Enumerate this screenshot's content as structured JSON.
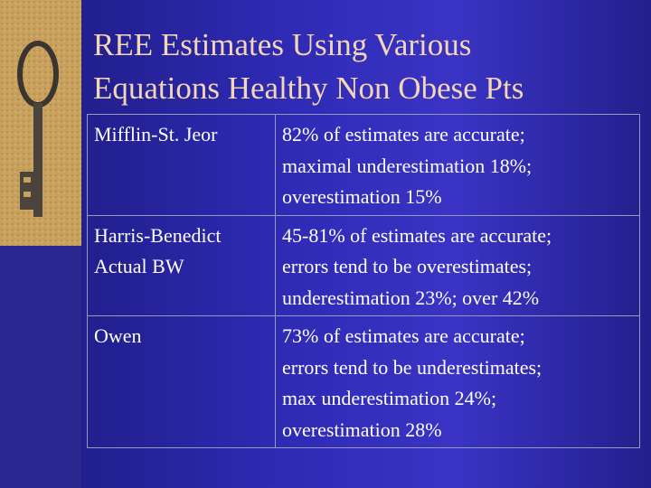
{
  "title": {
    "lines": [
      "REE Estimates Using Various",
      "Equations Healthy Non Obese Pts"
    ]
  },
  "table": {
    "rows": [
      [
        [
          "Mifflin-St. Jeor"
        ],
        [
          "82% of estimates are accurate;",
          "maximal underestimation 18%;",
          "overestimation 15%"
        ]
      ],
      [
        [
          "Harris-Benedict",
          "Actual BW"
        ],
        [
          "45-81% of estimates are accurate;",
          "errors tend to be overestimates;",
          "underestimation 23%; over 42%"
        ]
      ],
      [
        [
          "Owen"
        ],
        [
          "73% of estimates are accurate;",
          "errors tend to be underestimates;",
          "max underestimation 24%;",
          "overestimation 28%"
        ]
      ]
    ]
  }
}
